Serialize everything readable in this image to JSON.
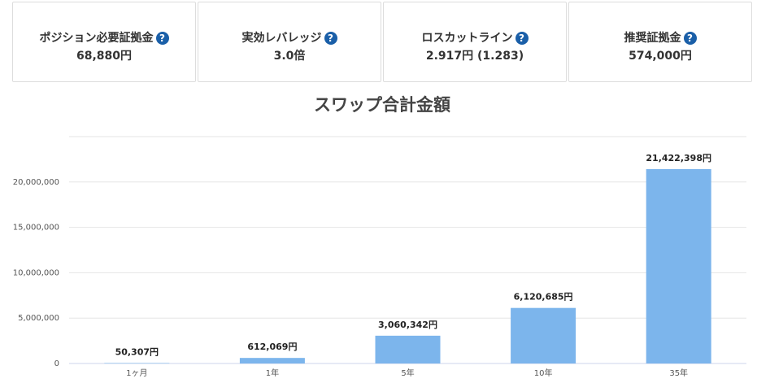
{
  "cards": [
    {
      "label": "ポジション必要証拠金",
      "value": "68,880円"
    },
    {
      "label": "実効レバレッジ",
      "value": "3.0倍"
    },
    {
      "label": "ロスカットライン",
      "value": "2.917円 (1.283)"
    },
    {
      "label": "推奨証拠金",
      "value": "574,000円"
    }
  ],
  "chart_data": {
    "type": "bar",
    "title": "スワップ合計金額",
    "categories": [
      "1ヶ月",
      "1年",
      "5年",
      "10年",
      "35年"
    ],
    "values": [
      50307,
      612069,
      3060342,
      6120685,
      21422398
    ],
    "value_labels": [
      "50,307円",
      "612,069円",
      "3,060,342円",
      "6,120,685円",
      "21,422,398円"
    ],
    "color": "#7cb5ec",
    "ylim": [
      0,
      25000000
    ],
    "yticks": [
      0,
      {
        "value": 5000000,
        "label": "5,000,000"
      },
      {
        "value": 10000000,
        "label": "10,000,000"
      },
      {
        "value": 15000000,
        "label": "15,000,000"
      },
      {
        "value": 20000000,
        "label": "20,000,000"
      }
    ],
    "grid": true
  }
}
